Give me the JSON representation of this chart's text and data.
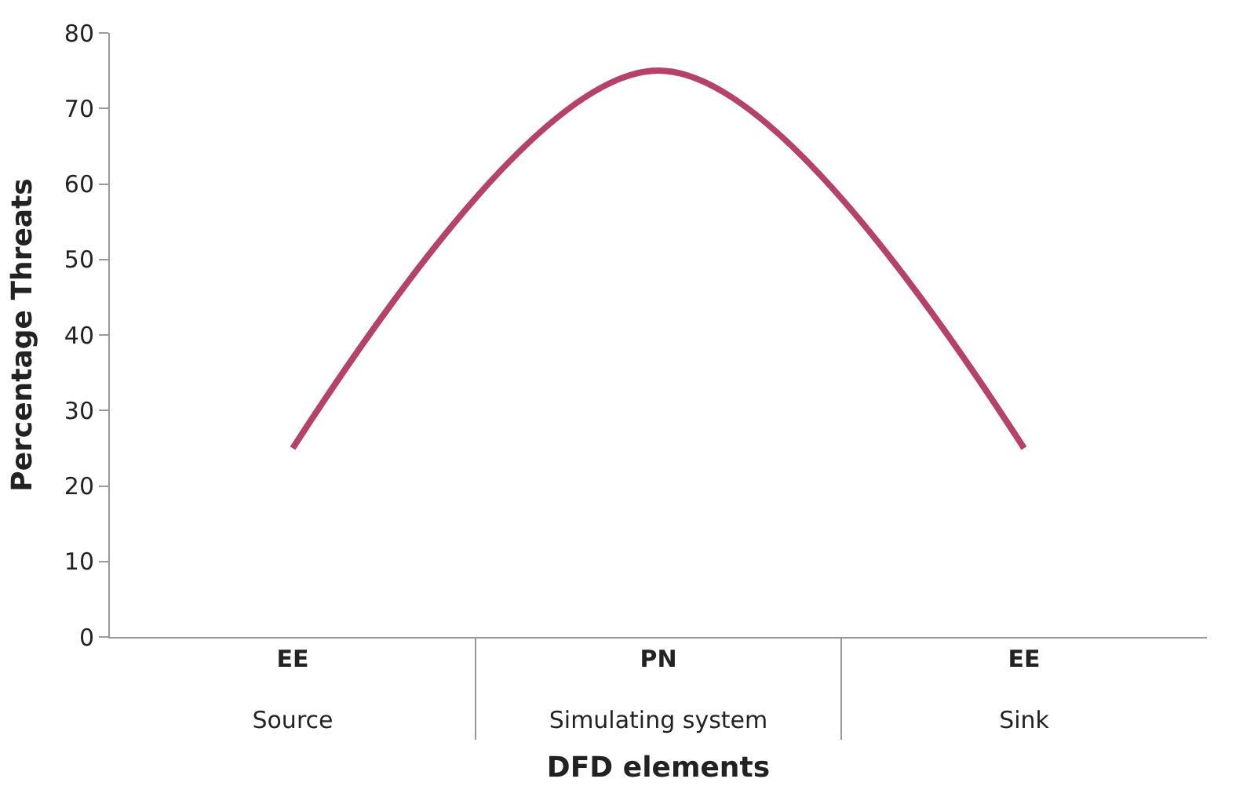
{
  "chart_data": {
    "type": "line",
    "xlabel": "DFD elements",
    "ylabel": "Percentage Threats",
    "categories": [
      "EE\nSource",
      "PN\nSimulating system",
      "EE\nSink"
    ],
    "series": [
      {
        "color": "#b5426a",
        "values": [
          25,
          75,
          25
        ]
      }
    ],
    "ylim": [
      0,
      80
    ],
    "yticks": [
      0,
      10,
      20,
      30,
      40,
      50,
      60,
      70,
      80
    ],
    "marker": "none",
    "line_style": "solid"
  }
}
